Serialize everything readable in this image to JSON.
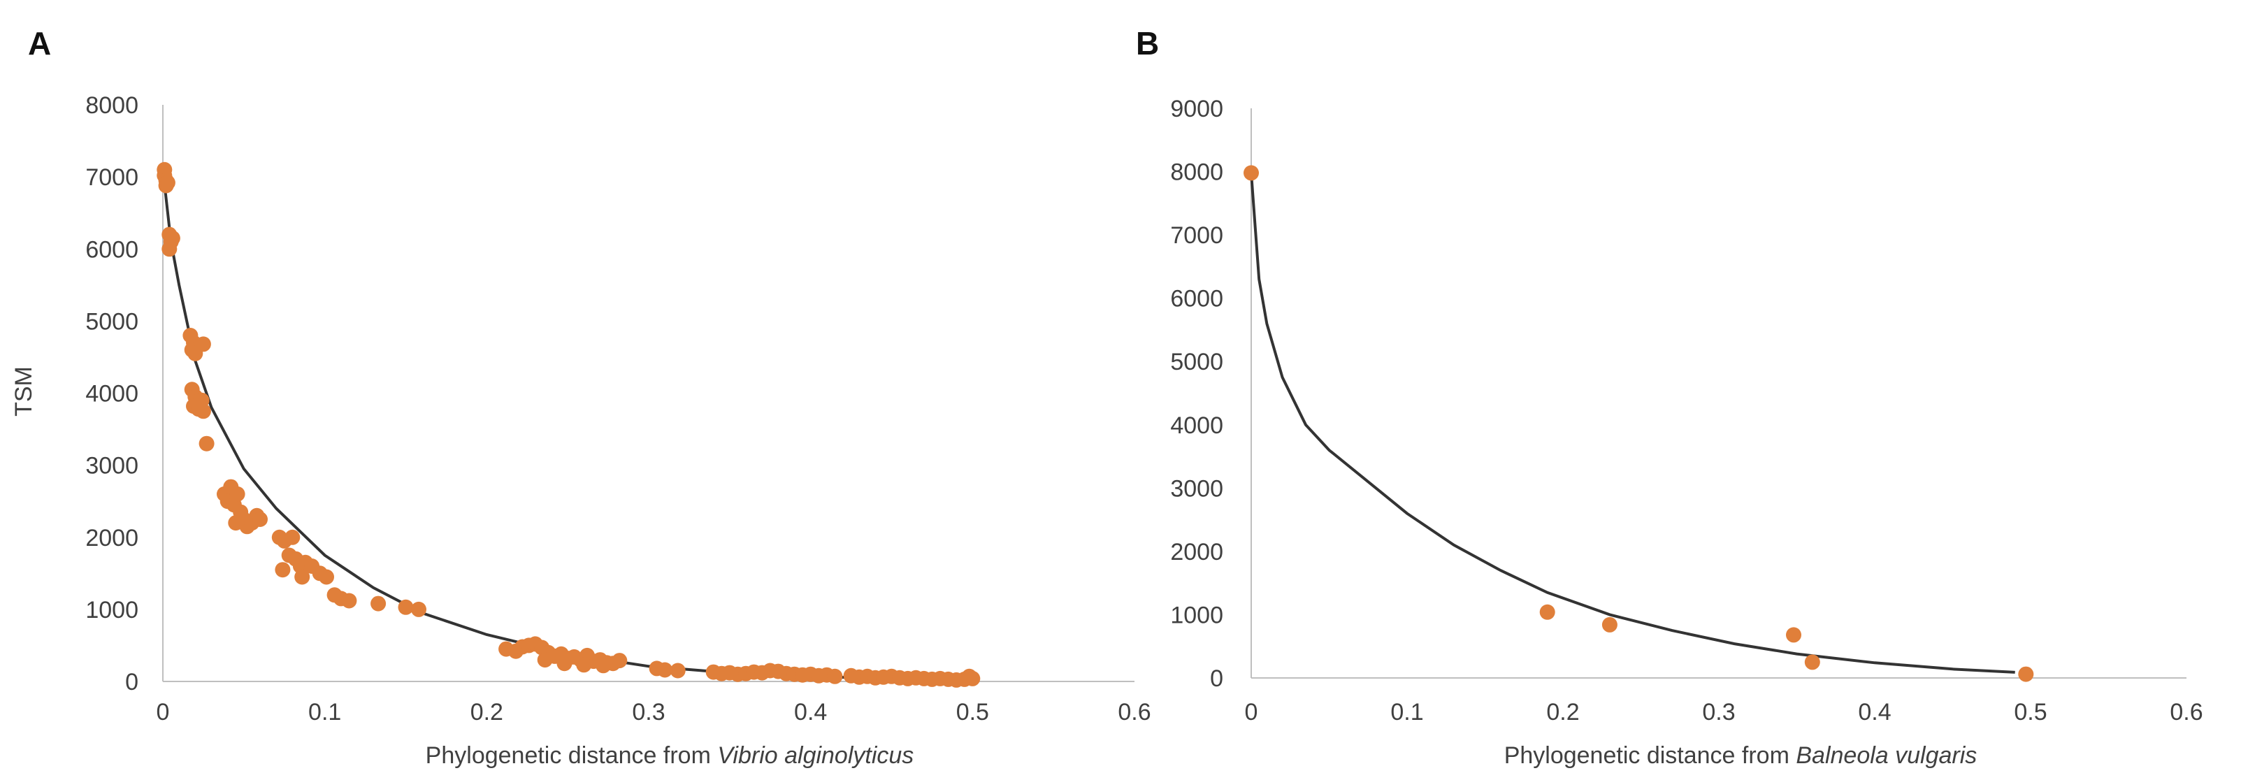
{
  "colors": {
    "point": "#E07F3A",
    "curve": "#333333",
    "axis": "#BFBFBF",
    "text": "#404040"
  },
  "chart_data": [
    {
      "panel": "A",
      "type": "scatter",
      "xlabel_prefix": "Phylogenetic distance from ",
      "xlabel_species": "Vibrio alginolyticus",
      "ylabel": "TSM",
      "xlim": [
        0,
        0.6
      ],
      "ylim": [
        0,
        8000
      ],
      "x_ticks": [
        "0",
        "0.1",
        "0.2",
        "0.3",
        "0.4",
        "0.5",
        "0.6"
      ],
      "y_ticks": [
        "0",
        "1000",
        "2000",
        "3000",
        "4000",
        "5000",
        "6000",
        "7000",
        "8000"
      ],
      "grid": false,
      "points": [
        [
          0.001,
          7100
        ],
        [
          0.001,
          7020
        ],
        [
          0.002,
          6950
        ],
        [
          0.002,
          6880
        ],
        [
          0.003,
          6920
        ],
        [
          0.004,
          6200
        ],
        [
          0.005,
          6100
        ],
        [
          0.004,
          6000
        ],
        [
          0.006,
          6150
        ],
        [
          0.017,
          4800
        ],
        [
          0.019,
          4700
        ],
        [
          0.018,
          4600
        ],
        [
          0.02,
          4550
        ],
        [
          0.025,
          4680
        ],
        [
          0.018,
          4050
        ],
        [
          0.02,
          3950
        ],
        [
          0.021,
          3880
        ],
        [
          0.019,
          3820
        ],
        [
          0.022,
          3780
        ],
        [
          0.024,
          3900
        ],
        [
          0.025,
          3750
        ],
        [
          0.027,
          3300
        ],
        [
          0.038,
          2600
        ],
        [
          0.04,
          2500
        ],
        [
          0.042,
          2700
        ],
        [
          0.044,
          2450
        ],
        [
          0.046,
          2600
        ],
        [
          0.048,
          2350
        ],
        [
          0.05,
          2250
        ],
        [
          0.045,
          2200
        ],
        [
          0.052,
          2150
        ],
        [
          0.055,
          2200
        ],
        [
          0.058,
          2300
        ],
        [
          0.06,
          2250
        ],
        [
          0.072,
          2000
        ],
        [
          0.075,
          1950
        ],
        [
          0.08,
          2000
        ],
        [
          0.078,
          1750
        ],
        [
          0.082,
          1700
        ],
        [
          0.085,
          1600
        ],
        [
          0.088,
          1650
        ],
        [
          0.074,
          1550
        ],
        [
          0.086,
          1450
        ],
        [
          0.092,
          1600
        ],
        [
          0.097,
          1500
        ],
        [
          0.101,
          1450
        ],
        [
          0.106,
          1200
        ],
        [
          0.11,
          1150
        ],
        [
          0.115,
          1120
        ],
        [
          0.133,
          1080
        ],
        [
          0.15,
          1030
        ],
        [
          0.158,
          1000
        ],
        [
          0.212,
          450
        ],
        [
          0.218,
          420
        ],
        [
          0.222,
          480
        ],
        [
          0.226,
          500
        ],
        [
          0.23,
          520
        ],
        [
          0.234,
          470
        ],
        [
          0.238,
          400
        ],
        [
          0.242,
          350
        ],
        [
          0.246,
          380
        ],
        [
          0.25,
          320
        ],
        [
          0.254,
          340
        ],
        [
          0.258,
          300
        ],
        [
          0.262,
          360
        ],
        [
          0.266,
          280
        ],
        [
          0.27,
          300
        ],
        [
          0.274,
          260
        ],
        [
          0.278,
          250
        ],
        [
          0.282,
          290
        ],
        [
          0.236,
          300
        ],
        [
          0.248,
          250
        ],
        [
          0.26,
          230
        ],
        [
          0.272,
          220
        ],
        [
          0.305,
          180
        ],
        [
          0.31,
          160
        ],
        [
          0.318,
          150
        ],
        [
          0.34,
          130
        ],
        [
          0.345,
          110
        ],
        [
          0.35,
          120
        ],
        [
          0.355,
          100
        ],
        [
          0.36,
          110
        ],
        [
          0.365,
          130
        ],
        [
          0.37,
          120
        ],
        [
          0.375,
          150
        ],
        [
          0.38,
          140
        ],
        [
          0.385,
          110
        ],
        [
          0.39,
          100
        ],
        [
          0.395,
          90
        ],
        [
          0.4,
          100
        ],
        [
          0.405,
          80
        ],
        [
          0.41,
          90
        ],
        [
          0.415,
          70
        ],
        [
          0.425,
          80
        ],
        [
          0.43,
          60
        ],
        [
          0.435,
          70
        ],
        [
          0.44,
          50
        ],
        [
          0.445,
          60
        ],
        [
          0.45,
          70
        ],
        [
          0.455,
          50
        ],
        [
          0.46,
          40
        ],
        [
          0.465,
          50
        ],
        [
          0.47,
          40
        ],
        [
          0.475,
          30
        ],
        [
          0.48,
          40
        ],
        [
          0.485,
          30
        ],
        [
          0.49,
          20
        ],
        [
          0.495,
          30
        ],
        [
          0.498,
          70
        ],
        [
          0.5,
          40
        ]
      ],
      "trendline": {
        "x": [
          0,
          0.005,
          0.01,
          0.02,
          0.03,
          0.05,
          0.07,
          0.1,
          0.13,
          0.16,
          0.2,
          0.25,
          0.3,
          0.35,
          0.4,
          0.45,
          0.5
        ],
        "y": [
          7100,
          6100,
          5500,
          4450,
          3800,
          2950,
          2400,
          1750,
          1300,
          950,
          650,
          380,
          210,
          120,
          70,
          40,
          20
        ]
      }
    },
    {
      "panel": "B",
      "type": "scatter",
      "xlabel_prefix": "Phylogenetic distance from ",
      "xlabel_species": "Balneola vulgaris",
      "ylabel": "",
      "xlim": [
        0,
        0.6
      ],
      "ylim": [
        0,
        9000
      ],
      "x_ticks": [
        "0",
        "0.1",
        "0.2",
        "0.3",
        "0.4",
        "0.5",
        "0.6"
      ],
      "y_ticks": [
        "0",
        "1000",
        "2000",
        "3000",
        "4000",
        "5000",
        "6000",
        "7000",
        "8000",
        "9000"
      ],
      "grid": false,
      "points": [
        [
          0,
          7980
        ],
        [
          0.19,
          1040
        ],
        [
          0.23,
          840
        ],
        [
          0.348,
          680
        ],
        [
          0.36,
          250
        ],
        [
          0.497,
          60
        ]
      ],
      "trendline": {
        "x": [
          0,
          0.005,
          0.01,
          0.02,
          0.035,
          0.05,
          0.07,
          0.1,
          0.13,
          0.16,
          0.19,
          0.23,
          0.27,
          0.31,
          0.35,
          0.4,
          0.45,
          0.49
        ],
        "y": [
          7980,
          6300,
          5600,
          4750,
          4000,
          3600,
          3200,
          2600,
          2100,
          1700,
          1350,
          1000,
          750,
          540,
          380,
          240,
          140,
          90
        ]
      }
    }
  ]
}
